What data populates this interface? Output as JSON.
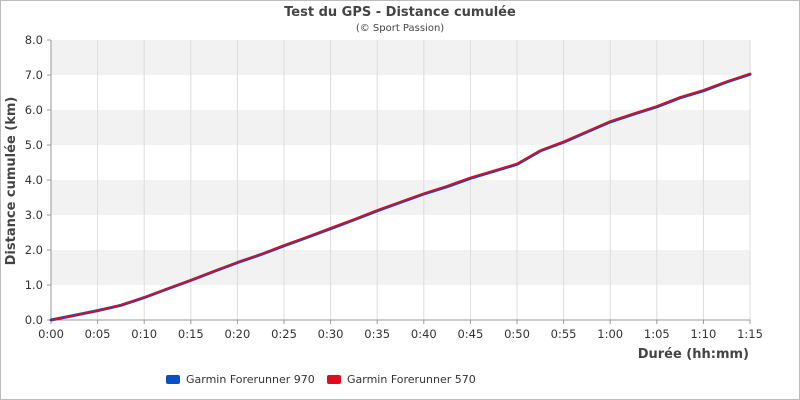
{
  "chart_data": {
    "type": "line",
    "title": "Test du GPS - Distance cumulée",
    "subtitle": "(© Sport Passion)",
    "xlabel": "Durée (hh:mm)",
    "ylabel": "Distance cumulée (km)",
    "x_unit": "minutes",
    "xlim": [
      0,
      75
    ],
    "ylim": [
      0,
      8
    ],
    "x_ticks": [
      {
        "value": 0,
        "label": "0:00"
      },
      {
        "value": 5,
        "label": "0:05"
      },
      {
        "value": 10,
        "label": "0:10"
      },
      {
        "value": 15,
        "label": "0:15"
      },
      {
        "value": 20,
        "label": "0:20"
      },
      {
        "value": 25,
        "label": "0:25"
      },
      {
        "value": 30,
        "label": "0:30"
      },
      {
        "value": 35,
        "label": "0:35"
      },
      {
        "value": 40,
        "label": "0:40"
      },
      {
        "value": 45,
        "label": "0:45"
      },
      {
        "value": 50,
        "label": "0:50"
      },
      {
        "value": 55,
        "label": "0:55"
      },
      {
        "value": 60,
        "label": "1:00"
      },
      {
        "value": 65,
        "label": "1:05"
      },
      {
        "value": 70,
        "label": "1:10"
      },
      {
        "value": 75,
        "label": "1:15"
      }
    ],
    "y_ticks": [
      {
        "value": 0,
        "label": "0.0"
      },
      {
        "value": 1,
        "label": "1.0"
      },
      {
        "value": 2,
        "label": "2.0"
      },
      {
        "value": 3,
        "label": "3.0"
      },
      {
        "value": 4,
        "label": "4.0"
      },
      {
        "value": 5,
        "label": "5.0"
      },
      {
        "value": 6,
        "label": "6.0"
      },
      {
        "value": 7,
        "label": "7.0"
      },
      {
        "value": 8,
        "label": "8.0"
      }
    ],
    "grid": true,
    "legend_position": "bottom",
    "series": [
      {
        "name": "Garmin Forerunner 970",
        "color": "#0b4fc4",
        "x": [
          0,
          2.5,
          5,
          7.5,
          10,
          12.5,
          15,
          17.5,
          20,
          22.5,
          25,
          27.5,
          30,
          32.5,
          35,
          37.5,
          40,
          42.5,
          45,
          47.5,
          50,
          52.5,
          55,
          57.5,
          60,
          62.5,
          65,
          67.5,
          70,
          72.5,
          75
        ],
        "y": [
          0,
          0.13,
          0.27,
          0.42,
          0.64,
          0.89,
          1.13,
          1.39,
          1.64,
          1.87,
          2.12,
          2.36,
          2.61,
          2.86,
          3.12,
          3.36,
          3.6,
          3.81,
          4.05,
          4.25,
          4.45,
          4.83,
          5.08,
          5.37,
          5.66,
          5.88,
          6.09,
          6.35,
          6.55,
          6.8,
          7.02
        ]
      },
      {
        "name": "Garmin Forerunner 570",
        "color": "#e00b1c",
        "x": [
          0,
          2.5,
          5,
          7.5,
          10,
          12.5,
          15,
          17.5,
          20,
          22.5,
          25,
          27.5,
          30,
          32.5,
          35,
          37.5,
          40,
          42.5,
          45,
          47.5,
          50,
          52.5,
          55,
          57.5,
          60,
          62.5,
          65,
          67.5,
          70,
          72.5,
          75
        ],
        "y": [
          0,
          0.13,
          0.27,
          0.43,
          0.65,
          0.9,
          1.14,
          1.4,
          1.65,
          1.88,
          2.14,
          2.38,
          2.63,
          2.88,
          3.14,
          3.38,
          3.62,
          3.83,
          4.07,
          4.27,
          4.47,
          4.85,
          5.1,
          5.39,
          5.68,
          5.9,
          6.11,
          6.37,
          6.57,
          6.82,
          7.04
        ]
      }
    ]
  }
}
